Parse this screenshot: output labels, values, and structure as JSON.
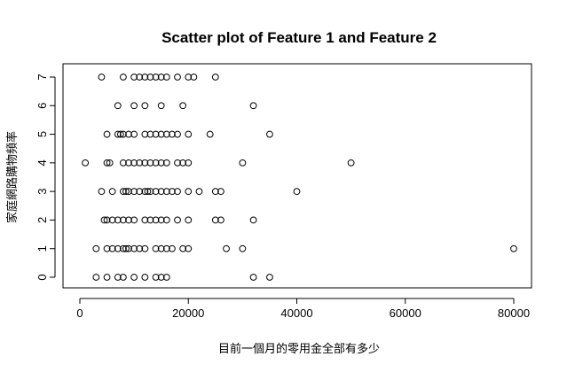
{
  "chart_data": {
    "type": "scatter",
    "title": "Scatter plot of Feature 1 and Feature 2",
    "xlabel": "目前一個月的零用金全部有多少",
    "ylabel": "家庭網路購物頻率",
    "xlim": [
      0,
      80000
    ],
    "ylim": [
      0,
      7
    ],
    "xticks": [
      0,
      20000,
      40000,
      60000,
      80000
    ],
    "yticks": [
      0,
      1,
      2,
      3,
      4,
      5,
      6,
      7
    ],
    "grid": false,
    "marker": "open-circle",
    "points": [
      [
        4000,
        7
      ],
      [
        8000,
        7
      ],
      [
        10000,
        7
      ],
      [
        11000,
        7
      ],
      [
        12000,
        7
      ],
      [
        13000,
        7
      ],
      [
        14000,
        7
      ],
      [
        15000,
        7
      ],
      [
        16000,
        7
      ],
      [
        18000,
        7
      ],
      [
        20000,
        7
      ],
      [
        21000,
        7
      ],
      [
        25000,
        7
      ],
      [
        7000,
        6
      ],
      [
        10000,
        6
      ],
      [
        12000,
        6
      ],
      [
        15000,
        6
      ],
      [
        19000,
        6
      ],
      [
        32000,
        6
      ],
      [
        5000,
        5
      ],
      [
        7000,
        5
      ],
      [
        7500,
        5
      ],
      [
        8000,
        5
      ],
      [
        9000,
        5
      ],
      [
        10000,
        5
      ],
      [
        12000,
        5
      ],
      [
        13000,
        5
      ],
      [
        14000,
        5
      ],
      [
        15000,
        5
      ],
      [
        16000,
        5
      ],
      [
        17000,
        5
      ],
      [
        18000,
        5
      ],
      [
        20000,
        5
      ],
      [
        24000,
        5
      ],
      [
        35000,
        5
      ],
      [
        1000,
        4
      ],
      [
        5000,
        4
      ],
      [
        5500,
        4
      ],
      [
        8000,
        4
      ],
      [
        9000,
        4
      ],
      [
        10000,
        4
      ],
      [
        11000,
        4
      ],
      [
        12000,
        4
      ],
      [
        13000,
        4
      ],
      [
        14000,
        4
      ],
      [
        15000,
        4
      ],
      [
        16000,
        4
      ],
      [
        18000,
        4
      ],
      [
        19000,
        4
      ],
      [
        20000,
        4
      ],
      [
        30000,
        4
      ],
      [
        50000,
        4
      ],
      [
        4000,
        3
      ],
      [
        6000,
        3
      ],
      [
        8000,
        3
      ],
      [
        8500,
        3
      ],
      [
        9000,
        3
      ],
      [
        10000,
        3
      ],
      [
        11000,
        3
      ],
      [
        12000,
        3
      ],
      [
        12500,
        3
      ],
      [
        13000,
        3
      ],
      [
        14000,
        3
      ],
      [
        15000,
        3
      ],
      [
        16000,
        3
      ],
      [
        17000,
        3
      ],
      [
        18000,
        3
      ],
      [
        20000,
        3
      ],
      [
        22000,
        3
      ],
      [
        25000,
        3
      ],
      [
        26000,
        3
      ],
      [
        40000,
        3
      ],
      [
        4500,
        2
      ],
      [
        5000,
        2
      ],
      [
        6000,
        2
      ],
      [
        7000,
        2
      ],
      [
        8000,
        2
      ],
      [
        9000,
        2
      ],
      [
        10000,
        2
      ],
      [
        12000,
        2
      ],
      [
        13000,
        2
      ],
      [
        14000,
        2
      ],
      [
        15000,
        2
      ],
      [
        16000,
        2
      ],
      [
        18000,
        2
      ],
      [
        20000,
        2
      ],
      [
        25000,
        2
      ],
      [
        26000,
        2
      ],
      [
        32000,
        2
      ],
      [
        3000,
        1
      ],
      [
        5000,
        1
      ],
      [
        6000,
        1
      ],
      [
        7000,
        1
      ],
      [
        8000,
        1
      ],
      [
        8500,
        1
      ],
      [
        9000,
        1
      ],
      [
        10000,
        1
      ],
      [
        11000,
        1
      ],
      [
        12000,
        1
      ],
      [
        14000,
        1
      ],
      [
        15000,
        1
      ],
      [
        16000,
        1
      ],
      [
        17000,
        1
      ],
      [
        19000,
        1
      ],
      [
        20000,
        1
      ],
      [
        27000,
        1
      ],
      [
        30000,
        1
      ],
      [
        80000,
        1
      ],
      [
        3000,
        0
      ],
      [
        5000,
        0
      ],
      [
        7000,
        0
      ],
      [
        8000,
        0
      ],
      [
        10000,
        0
      ],
      [
        12000,
        0
      ],
      [
        14000,
        0
      ],
      [
        15000,
        0
      ],
      [
        16000,
        0
      ],
      [
        32000,
        0
      ],
      [
        35000,
        0
      ]
    ]
  }
}
